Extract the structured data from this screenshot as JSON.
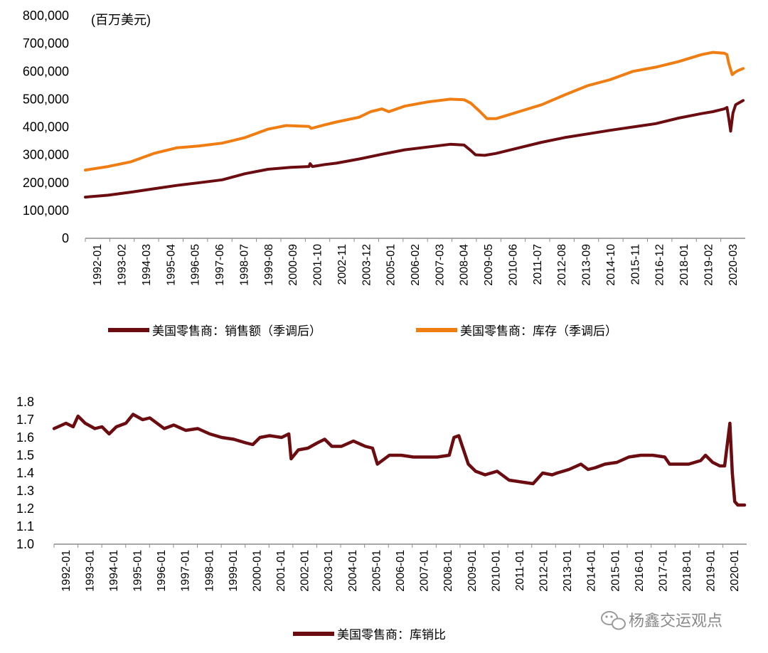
{
  "colors": {
    "sales": "#6b0c10",
    "inventory": "#ef7d12",
    "ratio": "#6b0c10",
    "axis": "#8c8c8c"
  },
  "watermark": {
    "icon": "wechat-icon",
    "text": "杨鑫交运观点"
  },
  "chart_data": [
    {
      "type": "line",
      "title": "",
      "unit_label": "(百万美元)",
      "ylim": [
        0,
        800000
      ],
      "yticks": [
        0,
        100000,
        200000,
        300000,
        400000,
        500000,
        600000,
        700000,
        800000
      ],
      "ytick_labels": [
        "0",
        "100,000",
        "200,000",
        "300,000",
        "400,000",
        "500,000",
        "600,000",
        "700,000",
        "800,000"
      ],
      "xlim": [
        1992.0,
        2020.92
      ],
      "xtick_labels": [
        "1992-01",
        "1993-02",
        "1994-03",
        "1995-04",
        "1996-05",
        "1997-06",
        "1998-07",
        "1999-08",
        "2000-09",
        "2001-10",
        "2002-11",
        "2003-12",
        "2005-01",
        "2006-02",
        "2007-03",
        "2008-04",
        "2009-05",
        "2010-06",
        "2011-07",
        "2012-08",
        "2013-09",
        "2014-10",
        "2015-11",
        "2016-12",
        "2018-01",
        "2019-02",
        "2020-03"
      ],
      "series": [
        {
          "name": "美国零售商：销售额（季调后）",
          "color_key": "sales",
          "points": [
            [
              1992.0,
              148000
            ],
            [
              1993.0,
              155000
            ],
            [
              1994.0,
              166000
            ],
            [
              1995.0,
              178000
            ],
            [
              1996.0,
              190000
            ],
            [
              1997.0,
              200000
            ],
            [
              1998.0,
              210000
            ],
            [
              1999.0,
              232000
            ],
            [
              2000.0,
              248000
            ],
            [
              2001.0,
              255000
            ],
            [
              2001.8,
              258000
            ],
            [
              2001.85,
              268000
            ],
            [
              2001.95,
              258000
            ],
            [
              2002.5,
              265000
            ],
            [
              2003.0,
              270000
            ],
            [
              2004.0,
              285000
            ],
            [
              2005.0,
              302000
            ],
            [
              2006.0,
              318000
            ],
            [
              2007.0,
              328000
            ],
            [
              2008.0,
              338000
            ],
            [
              2008.6,
              335000
            ],
            [
              2008.9,
              315000
            ],
            [
              2009.1,
              300000
            ],
            [
              2009.5,
              298000
            ],
            [
              2010.0,
              305000
            ],
            [
              2011.0,
              325000
            ],
            [
              2012.0,
              345000
            ],
            [
              2013.0,
              362000
            ],
            [
              2014.0,
              375000
            ],
            [
              2015.0,
              388000
            ],
            [
              2016.0,
              400000
            ],
            [
              2017.0,
              412000
            ],
            [
              2018.0,
              432000
            ],
            [
              2019.0,
              448000
            ],
            [
              2019.5,
              455000
            ],
            [
              2020.0,
              465000
            ],
            [
              2020.12,
              470000
            ],
            [
              2020.2,
              430000
            ],
            [
              2020.28,
              385000
            ],
            [
              2020.38,
              450000
            ],
            [
              2020.5,
              480000
            ],
            [
              2020.67,
              488000
            ],
            [
              2020.83,
              495000
            ]
          ]
        },
        {
          "name": "美国零售商：库存（季调后）",
          "color_key": "inventory",
          "points": [
            [
              1992.0,
              245000
            ],
            [
              1993.0,
              258000
            ],
            [
              1994.0,
              275000
            ],
            [
              1995.0,
              305000
            ],
            [
              1996.0,
              325000
            ],
            [
              1997.0,
              332000
            ],
            [
              1998.0,
              342000
            ],
            [
              1999.0,
              362000
            ],
            [
              2000.0,
              392000
            ],
            [
              2000.8,
              405000
            ],
            [
              2001.8,
              402000
            ],
            [
              2001.9,
              395000
            ],
            [
              2002.5,
              408000
            ],
            [
              2003.0,
              418000
            ],
            [
              2004.0,
              435000
            ],
            [
              2004.5,
              455000
            ],
            [
              2005.0,
              465000
            ],
            [
              2005.3,
              455000
            ],
            [
              2006.0,
              475000
            ],
            [
              2007.0,
              490000
            ],
            [
              2008.0,
              500000
            ],
            [
              2008.6,
              498000
            ],
            [
              2008.9,
              485000
            ],
            [
              2009.3,
              455000
            ],
            [
              2009.6,
              430000
            ],
            [
              2010.0,
              430000
            ],
            [
              2011.0,
              455000
            ],
            [
              2012.0,
              480000
            ],
            [
              2013.0,
              515000
            ],
            [
              2014.0,
              548000
            ],
            [
              2015.0,
              570000
            ],
            [
              2016.0,
              600000
            ],
            [
              2017.0,
              615000
            ],
            [
              2018.0,
              635000
            ],
            [
              2019.0,
              660000
            ],
            [
              2019.5,
              668000
            ],
            [
              2020.0,
              665000
            ],
            [
              2020.12,
              660000
            ],
            [
              2020.2,
              628000
            ],
            [
              2020.35,
              588000
            ],
            [
              2020.5,
              598000
            ],
            [
              2020.67,
              605000
            ],
            [
              2020.83,
              610000
            ]
          ]
        }
      ]
    },
    {
      "type": "line",
      "title": "",
      "ylim": [
        1.0,
        1.8
      ],
      "yticks": [
        1.0,
        1.1,
        1.2,
        1.3,
        1.4,
        1.5,
        1.6,
        1.7,
        1.8
      ],
      "ytick_labels": [
        "1.0",
        "1.1",
        "1.2",
        "1.3",
        "1.4",
        "1.5",
        "1.6",
        "1.7",
        "1.8"
      ],
      "xlim": [
        1992.0,
        2020.92
      ],
      "xtick_labels": [
        "1992-01",
        "1993-01",
        "1994-01",
        "1995-01",
        "1996-01",
        "1997-01",
        "1998-01",
        "1999-01",
        "2000-01",
        "2001-01",
        "2002-01",
        "2003-01",
        "2004-01",
        "2005-01",
        "2006-01",
        "2007-01",
        "2008-01",
        "2009-01",
        "2010-01",
        "2011-01",
        "2012-01",
        "2013-01",
        "2014-01",
        "2015-01",
        "2016-01",
        "2017-01",
        "2018-01",
        "2019-01",
        "2020-01"
      ],
      "series": [
        {
          "name": "美国零售商：库销比",
          "color_key": "ratio",
          "points": [
            [
              1992.0,
              1.65
            ],
            [
              1992.5,
              1.68
            ],
            [
              1992.8,
              1.66
            ],
            [
              1993.0,
              1.72
            ],
            [
              1993.3,
              1.68
            ],
            [
              1993.7,
              1.65
            ],
            [
              1994.0,
              1.66
            ],
            [
              1994.3,
              1.62
            ],
            [
              1994.6,
              1.66
            ],
            [
              1995.0,
              1.68
            ],
            [
              1995.3,
              1.73
            ],
            [
              1995.7,
              1.7
            ],
            [
              1996.0,
              1.71
            ],
            [
              1996.3,
              1.68
            ],
            [
              1996.6,
              1.65
            ],
            [
              1997.0,
              1.67
            ],
            [
              1997.5,
              1.64
            ],
            [
              1998.0,
              1.65
            ],
            [
              1998.5,
              1.62
            ],
            [
              1999.0,
              1.6
            ],
            [
              1999.5,
              1.59
            ],
            [
              2000.0,
              1.57
            ],
            [
              2000.3,
              1.56
            ],
            [
              2000.6,
              1.6
            ],
            [
              2001.0,
              1.61
            ],
            [
              2001.5,
              1.6
            ],
            [
              2001.8,
              1.62
            ],
            [
              2001.9,
              1.48
            ],
            [
              2002.2,
              1.53
            ],
            [
              2002.6,
              1.54
            ],
            [
              2003.0,
              1.57
            ],
            [
              2003.3,
              1.59
            ],
            [
              2003.6,
              1.55
            ],
            [
              2004.0,
              1.55
            ],
            [
              2004.5,
              1.58
            ],
            [
              2005.0,
              1.55
            ],
            [
              2005.3,
              1.54
            ],
            [
              2005.5,
              1.45
            ],
            [
              2005.8,
              1.48
            ],
            [
              2006.0,
              1.5
            ],
            [
              2006.5,
              1.5
            ],
            [
              2007.0,
              1.49
            ],
            [
              2007.5,
              1.49
            ],
            [
              2008.0,
              1.49
            ],
            [
              2008.5,
              1.5
            ],
            [
              2008.7,
              1.6
            ],
            [
              2008.9,
              1.61
            ],
            [
              2009.0,
              1.57
            ],
            [
              2009.3,
              1.45
            ],
            [
              2009.6,
              1.41
            ],
            [
              2010.0,
              1.39
            ],
            [
              2010.5,
              1.41
            ],
            [
              2011.0,
              1.36
            ],
            [
              2011.5,
              1.35
            ],
            [
              2012.0,
              1.34
            ],
            [
              2012.4,
              1.4
            ],
            [
              2012.8,
              1.39
            ],
            [
              2013.0,
              1.4
            ],
            [
              2013.5,
              1.42
            ],
            [
              2014.0,
              1.45
            ],
            [
              2014.3,
              1.42
            ],
            [
              2014.6,
              1.43
            ],
            [
              2015.0,
              1.45
            ],
            [
              2015.5,
              1.46
            ],
            [
              2016.0,
              1.49
            ],
            [
              2016.5,
              1.5
            ],
            [
              2017.0,
              1.5
            ],
            [
              2017.5,
              1.49
            ],
            [
              2017.7,
              1.45
            ],
            [
              2018.0,
              1.45
            ],
            [
              2018.5,
              1.45
            ],
            [
              2019.0,
              1.47
            ],
            [
              2019.2,
              1.5
            ],
            [
              2019.5,
              1.46
            ],
            [
              2019.8,
              1.44
            ],
            [
              2020.0,
              1.44
            ],
            [
              2020.1,
              1.55
            ],
            [
              2020.22,
              1.68
            ],
            [
              2020.32,
              1.4
            ],
            [
              2020.42,
              1.24
            ],
            [
              2020.55,
              1.22
            ],
            [
              2020.83,
              1.22
            ]
          ]
        }
      ]
    }
  ]
}
